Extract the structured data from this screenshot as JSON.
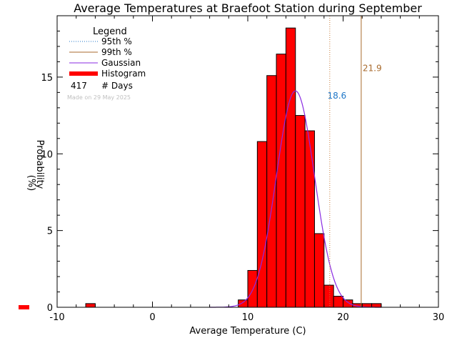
{
  "chart_data": {
    "type": "bar",
    "title": "Average Temperatures at Braefoot Station during September",
    "xlabel": "Average Temperature (C)",
    "ylabel": "Probability",
    "ylabel_unit": "(%)",
    "xlim": [
      -10,
      30
    ],
    "ylim": [
      0,
      19
    ],
    "x_ticks": [
      -10,
      0,
      10,
      20,
      30
    ],
    "y_ticks": [
      0,
      5,
      10,
      15
    ],
    "bin_width": 1,
    "histogram": {
      "name": "Histogram",
      "bin_starts": [
        -7,
        9,
        10,
        11,
        12,
        13,
        14,
        15,
        16,
        17,
        18,
        19,
        20,
        21,
        22,
        23
      ],
      "values": [
        0.24,
        0.48,
        2.4,
        10.8,
        15.1,
        16.5,
        18.2,
        12.5,
        11.5,
        4.8,
        1.44,
        0.72,
        0.48,
        0.24,
        0.24,
        0.24
      ],
      "color": "#ff0000"
    },
    "gaussian": {
      "name": "Gaussian",
      "mean": 15.0,
      "sigma": 2.0,
      "peak": 14.1,
      "color": "#8a2be2"
    },
    "percentiles": [
      {
        "name": "95th %",
        "value": 18.6,
        "label": "18.6",
        "color": "#c87d3a",
        "label_color": "#1f77c8",
        "style": "dotted"
      },
      {
        "name": "99th %",
        "value": 21.9,
        "label": "21.9",
        "color": "#a86a2c",
        "label_color": "#a86a2c",
        "style": "solid"
      }
    ],
    "legend": {
      "title": "Legend",
      "position": "top-left",
      "items": [
        {
          "label": "95th %",
          "color": "#1f77c8",
          "style": "dotted"
        },
        {
          "label": "99th %",
          "color": "#a86a2c",
          "style": "solid"
        },
        {
          "label": "Gaussian",
          "color": "#8a2be2",
          "style": "solid"
        },
        {
          "label": "Histogram",
          "color": "#ff0000",
          "style": "thick"
        }
      ],
      "days_count": "417",
      "days_label": "# Days",
      "made_on": "Made on 29 May 2025"
    }
  }
}
